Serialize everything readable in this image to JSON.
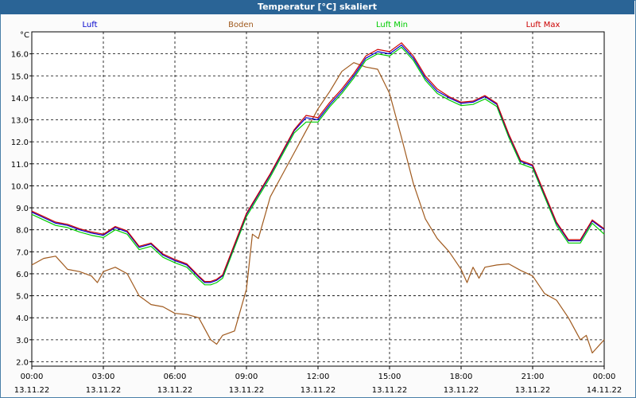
{
  "window": {
    "title": "Temperatur [°C] skaliert"
  },
  "chart_data": {
    "type": "line",
    "title": "Temperatur [°C] skaliert",
    "ylabel": "°C",
    "xlabel": "",
    "ylim": [
      1.8,
      17.0
    ],
    "xlim": [
      0,
      24
    ],
    "y_ticks": [
      "2.0",
      "3.0",
      "4.0",
      "5.0",
      "6.0",
      "7.0",
      "8.0",
      "9.0",
      "10.0",
      "11.0",
      "12.0",
      "13.0",
      "14.0",
      "15.0",
      "16.0"
    ],
    "x_ticks": [
      {
        "time": "00:00",
        "date": "13.11.22"
      },
      {
        "time": "03:00",
        "date": "13.11.22"
      },
      {
        "time": "06:00",
        "date": "13.11.22"
      },
      {
        "time": "09:00",
        "date": "13.11.22"
      },
      {
        "time": "12:00",
        "date": "13.11.22"
      },
      {
        "time": "15:00",
        "date": "13.11.22"
      },
      {
        "time": "18:00",
        "date": "13.11.22"
      },
      {
        "time": "21:00",
        "date": "13.11.22"
      },
      {
        "time": "00:00",
        "date": "14.11.22"
      }
    ],
    "grid": true,
    "legend_position": "top",
    "series": [
      {
        "name": "Luft",
        "color": "#0000cc",
        "x": [
          0,
          0.5,
          1,
          1.5,
          2,
          2.5,
          3,
          3.5,
          4,
          4.5,
          5,
          5.5,
          6,
          6.5,
          7,
          7.25,
          7.5,
          7.75,
          8,
          8.5,
          9,
          9.5,
          10,
          10.5,
          11,
          11.5,
          12,
          12.5,
          13,
          13.5,
          14,
          14.5,
          15,
          15.5,
          16,
          16.5,
          17,
          17.5,
          18,
          18.5,
          19,
          19.5,
          20,
          20.5,
          21,
          21.5,
          22,
          22.5,
          23,
          23.5,
          24
        ],
        "y": [
          8.8,
          8.55,
          8.3,
          8.2,
          8.0,
          7.85,
          7.75,
          8.1,
          7.9,
          7.2,
          7.35,
          6.85,
          6.6,
          6.4,
          5.85,
          5.6,
          5.6,
          5.7,
          5.9,
          7.3,
          8.7,
          9.6,
          10.5,
          11.5,
          12.5,
          13.1,
          13.0,
          13.7,
          14.3,
          15.0,
          15.8,
          16.1,
          16.0,
          16.4,
          15.8,
          14.9,
          14.3,
          14.0,
          13.75,
          13.8,
          14.05,
          13.7,
          12.3,
          11.1,
          10.9,
          9.6,
          8.3,
          7.5,
          7.5,
          8.4,
          8.0
        ],
        "values_are_estimates": true
      },
      {
        "name": "Boden",
        "color": "#a05a1e",
        "x": [
          0,
          0.5,
          1,
          1.5,
          2,
          2.5,
          2.75,
          3,
          3.5,
          4,
          4.5,
          5,
          5.5,
          6,
          6.5,
          7,
          7.5,
          7.75,
          8,
          8.5,
          9,
          9.25,
          9.5,
          10,
          10.5,
          11,
          11.5,
          12,
          12.5,
          13,
          13.5,
          14,
          14.5,
          15,
          15.5,
          16,
          16.5,
          17,
          17.5,
          18,
          18.25,
          18.5,
          18.75,
          19,
          19.5,
          20,
          20.5,
          21,
          21.5,
          22,
          22.5,
          23,
          23.25,
          23.5,
          24
        ],
        "y": [
          6.4,
          6.7,
          6.8,
          6.2,
          6.1,
          5.9,
          5.6,
          6.1,
          6.3,
          6.0,
          5.0,
          4.6,
          4.5,
          4.2,
          4.15,
          4.0,
          3.0,
          2.8,
          3.2,
          3.4,
          5.3,
          7.8,
          7.6,
          9.5,
          10.5,
          11.5,
          12.5,
          13.5,
          14.3,
          15.2,
          15.6,
          15.4,
          15.3,
          14.2,
          12.2,
          10.1,
          8.5,
          7.6,
          7.0,
          6.2,
          5.6,
          6.3,
          5.8,
          6.3,
          6.4,
          6.45,
          6.15,
          5.9,
          5.1,
          4.8,
          4.0,
          3.0,
          3.2,
          2.4,
          3.0
        ],
        "values_are_estimates": true
      },
      {
        "name": "Luft Min",
        "color": "#00cc00",
        "x": [
          0,
          0.5,
          1,
          1.5,
          2,
          2.5,
          3,
          3.5,
          4,
          4.5,
          5,
          5.5,
          6,
          6.5,
          7,
          7.25,
          7.5,
          7.75,
          8,
          8.5,
          9,
          9.5,
          10,
          10.5,
          11,
          11.5,
          12,
          12.5,
          13,
          13.5,
          14,
          14.5,
          15,
          15.5,
          16,
          16.5,
          17,
          17.5,
          18,
          18.5,
          19,
          19.5,
          20,
          20.5,
          21,
          21.5,
          22,
          22.5,
          23,
          23.5,
          24
        ],
        "y": [
          8.7,
          8.45,
          8.2,
          8.1,
          7.9,
          7.75,
          7.65,
          8.0,
          7.8,
          7.1,
          7.25,
          6.75,
          6.5,
          6.3,
          5.75,
          5.5,
          5.5,
          5.6,
          5.8,
          7.2,
          8.6,
          9.5,
          10.4,
          11.4,
          12.4,
          12.9,
          12.9,
          13.6,
          14.2,
          14.9,
          15.7,
          16.0,
          15.9,
          16.3,
          15.7,
          14.8,
          14.2,
          13.9,
          13.65,
          13.7,
          13.95,
          13.6,
          12.2,
          11.0,
          10.8,
          9.5,
          8.2,
          7.4,
          7.4,
          8.3,
          7.8
        ],
        "values_are_estimates": true
      },
      {
        "name": "Luft Max",
        "color": "#cc0000",
        "x": [
          0,
          0.5,
          1,
          1.5,
          2,
          2.5,
          3,
          3.5,
          4,
          4.5,
          5,
          5.5,
          6,
          6.5,
          7,
          7.25,
          7.5,
          7.75,
          8,
          8.5,
          9,
          9.5,
          10,
          10.5,
          11,
          11.5,
          12,
          12.5,
          13,
          13.5,
          14,
          14.5,
          15,
          15.5,
          16,
          16.5,
          17,
          17.5,
          18,
          18.5,
          19,
          19.5,
          20,
          20.5,
          21,
          21.5,
          22,
          22.5,
          23,
          23.5,
          24
        ],
        "y": [
          8.85,
          8.6,
          8.35,
          8.25,
          8.05,
          7.9,
          7.8,
          8.15,
          7.95,
          7.25,
          7.4,
          6.9,
          6.65,
          6.45,
          5.9,
          5.65,
          5.65,
          5.75,
          5.95,
          7.35,
          8.75,
          9.65,
          10.55,
          11.55,
          12.55,
          13.2,
          13.1,
          13.8,
          14.4,
          15.1,
          15.9,
          16.2,
          16.1,
          16.5,
          15.9,
          15.0,
          14.4,
          14.05,
          13.8,
          13.85,
          14.1,
          13.75,
          12.35,
          11.15,
          10.95,
          9.65,
          8.35,
          7.55,
          7.55,
          8.45,
          8.05
        ],
        "values_are_estimates": true
      }
    ]
  }
}
